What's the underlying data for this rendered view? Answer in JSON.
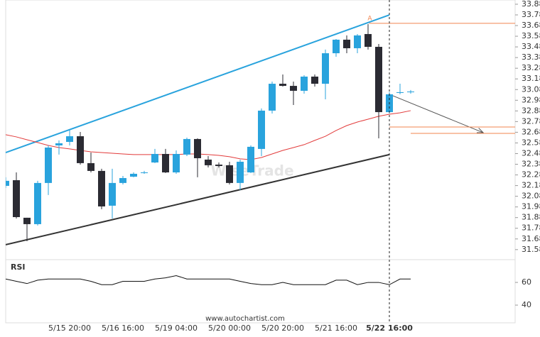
{
  "chart_data": [
    {
      "type": "candlestick",
      "categories": [
        null,
        null,
        null,
        null,
        null,
        null,
        "5/15 20:00",
        null,
        null,
        null,
        null,
        "5/16 16:00",
        null,
        null,
        null,
        null,
        "5/19 04:00",
        null,
        null,
        null,
        null,
        "5/20 00:00",
        null,
        null,
        null,
        null,
        "5/20 20:00",
        null,
        null,
        null,
        null,
        "5/21 16:00",
        null,
        null,
        null,
        null,
        "5/22 16:00",
        null,
        null
      ],
      "open": [
        32.182,
        32.235,
        31.883,
        31.823,
        32.209,
        32.561,
        32.594,
        32.647,
        32.395,
        32.322,
        31.996,
        32.209,
        32.268,
        32.302,
        32.401,
        32.481,
        32.308,
        32.475,
        32.621,
        32.428,
        32.381,
        32.375,
        32.209,
        32.308,
        32.528,
        32.887,
        33.139,
        33.119,
        33.073,
        33.206,
        33.139,
        33.425,
        33.552,
        33.472,
        33.605,
        33.485,
        32.873,
        33.053,
        33.06
      ],
      "high": [
        32.262,
        32.308,
        31.883,
        32.229,
        32.561,
        32.608,
        32.707,
        32.687,
        32.494,
        32.342,
        32.342,
        32.275,
        32.308,
        32.322,
        32.528,
        32.528,
        32.514,
        32.634,
        32.627,
        32.461,
        32.401,
        32.408,
        32.428,
        32.561,
        32.907,
        33.159,
        33.226,
        33.159,
        33.219,
        33.226,
        33.459,
        33.558,
        33.592,
        33.605,
        33.698,
        33.512,
        33.06,
        33.139,
        33.08
      ],
      "low": [
        32.162,
        31.876,
        31.663,
        31.81,
        32.096,
        32.475,
        32.561,
        32.381,
        32.308,
        31.963,
        31.876,
        32.195,
        32.262,
        32.295,
        32.395,
        32.302,
        32.295,
        32.461,
        32.262,
        32.355,
        32.355,
        32.195,
        32.142,
        32.302,
        32.461,
        32.86,
        33.113,
        32.94,
        33.046,
        33.113,
        32.993,
        33.392,
        33.425,
        33.425,
        33.459,
        32.627,
        32.86,
        33.04,
        33.046
      ],
      "close": [
        32.229,
        31.889,
        31.823,
        32.209,
        32.541,
        32.581,
        32.647,
        32.395,
        32.322,
        31.989,
        32.209,
        32.255,
        32.295,
        32.308,
        32.481,
        32.308,
        32.481,
        32.621,
        32.441,
        32.375,
        32.368,
        32.209,
        32.408,
        32.548,
        32.887,
        33.139,
        33.119,
        33.073,
        33.206,
        33.139,
        33.425,
        33.552,
        33.472,
        33.592,
        33.485,
        32.873,
        33.04,
        33.06,
        33.066
      ],
      "up_color": "#29a3dd",
      "down_color": "#2b2b33",
      "moving_average": {
        "color": "#e23b3b",
        "values": [
          32.661,
          32.641,
          32.614,
          32.588,
          32.561,
          32.541,
          32.528,
          32.514,
          32.501,
          32.494,
          32.488,
          32.481,
          32.475,
          32.475,
          32.475,
          32.475,
          32.475,
          32.481,
          32.481,
          32.475,
          32.468,
          32.455,
          32.435,
          32.428,
          32.448,
          32.481,
          32.514,
          32.541,
          32.568,
          32.608,
          32.647,
          32.701,
          32.747,
          32.78,
          32.807,
          32.834,
          32.853,
          32.867,
          32.887
        ]
      },
      "channel_upper": {
        "x": [
          0,
          36
        ],
        "y": [
          32.494,
          33.784
        ],
        "color": "#29a3dd"
      },
      "channel_lower": {
        "x": [
          0,
          36
        ],
        "y": [
          31.63,
          32.475
        ],
        "color": "#333333"
      },
      "forecast": {
        "x": [
          36,
          44.8
        ],
        "y": [
          33.04,
          32.681
        ],
        "color": "#555555"
      },
      "levels": {
        "color": "#f0844f",
        "items": [
          {
            "x": 34.1,
            "y": 33.705,
            "label": "A"
          },
          {
            "x": 36,
            "y": 32.734
          },
          {
            "x": 38,
            "y": 32.674
          }
        ]
      },
      "marker_index": 36,
      "watermark": "WiseTrade",
      "ylim": [
        31.53,
        33.924
      ],
      "yticks": [
        33.8844,
        33.7844,
        33.6844,
        33.5844,
        33.4844,
        33.3844,
        33.2844,
        33.1844,
        33.0844,
        32.9844,
        32.8844,
        32.7844,
        32.6844,
        32.5844,
        32.4844,
        32.3844,
        32.2844,
        32.1844,
        32.0844,
        31.9844,
        31.8844,
        31.7844,
        31.6844,
        31.5844
      ]
    },
    {
      "type": "line",
      "title": "RSI",
      "color": "#111111",
      "values": [
        63,
        61,
        59,
        62,
        63,
        63,
        63,
        63,
        61,
        58,
        58,
        61,
        61,
        61,
        63,
        64,
        66,
        63,
        63,
        63,
        63,
        63,
        61,
        59,
        58,
        58,
        60,
        58,
        58,
        58,
        58,
        62,
        62,
        58,
        60,
        60,
        58,
        63,
        63
      ],
      "ylim": [
        24.4,
        78.8
      ],
      "yticks": [
        60,
        40
      ]
    }
  ],
  "footer": "www.autochartist.com"
}
